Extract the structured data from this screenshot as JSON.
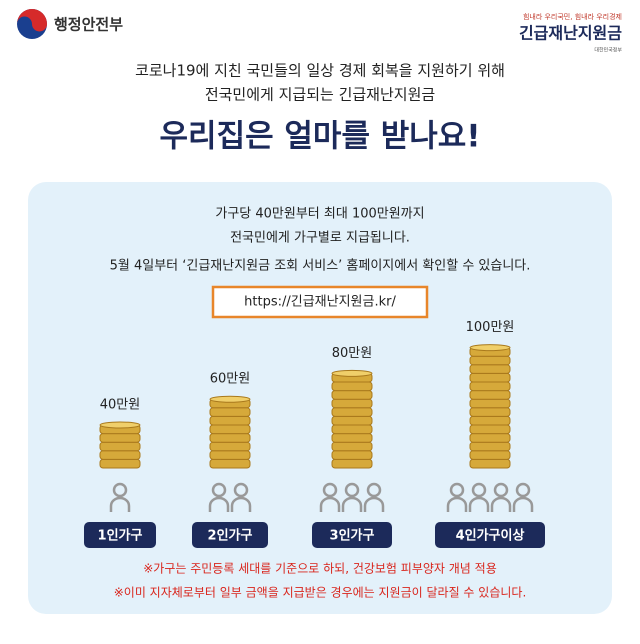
{
  "header": {
    "ministry": "행정안전부",
    "slogan": "힘내라 우리국민, 힘내라 우리경제",
    "brand": "긴급재난지원금",
    "government": "대한민국정부"
  },
  "intro": [
    "코로나19에 지친 국민들의 일상 경제 회복을 지원하기 위해",
    "전국민에게 지급되는 긴급재난지원금"
  ],
  "title": "우리집은 얼마를 받나요!",
  "panel": {
    "lines": [
      "가구당 40만원부터 최대 100만원까지",
      "전국민에게 가구별로 지급됩니다.",
      "5월 4일부터 ‘긴급재난지원금 조회 서비스’ 홈페이지에서 확인할 수 있습니다."
    ],
    "url": "https://긴급재난지원금.kr/",
    "tiers": [
      {
        "amount": "40만원",
        "household": "1인가구"
      },
      {
        "amount": "60만원",
        "household": "2인가구"
      },
      {
        "amount": "80만원",
        "household": "3인가구"
      },
      {
        "amount": "100만원",
        "household": "4인가구이상"
      }
    ],
    "notes": [
      "※가구는 주민등록 세대를 기준으로 하되, 건강보험 피부양자 개념 적용",
      "※이미 지자체로부터 일부 금액을 지급받은 경우에는 지원금이 달라질 수 있습니다."
    ]
  }
}
